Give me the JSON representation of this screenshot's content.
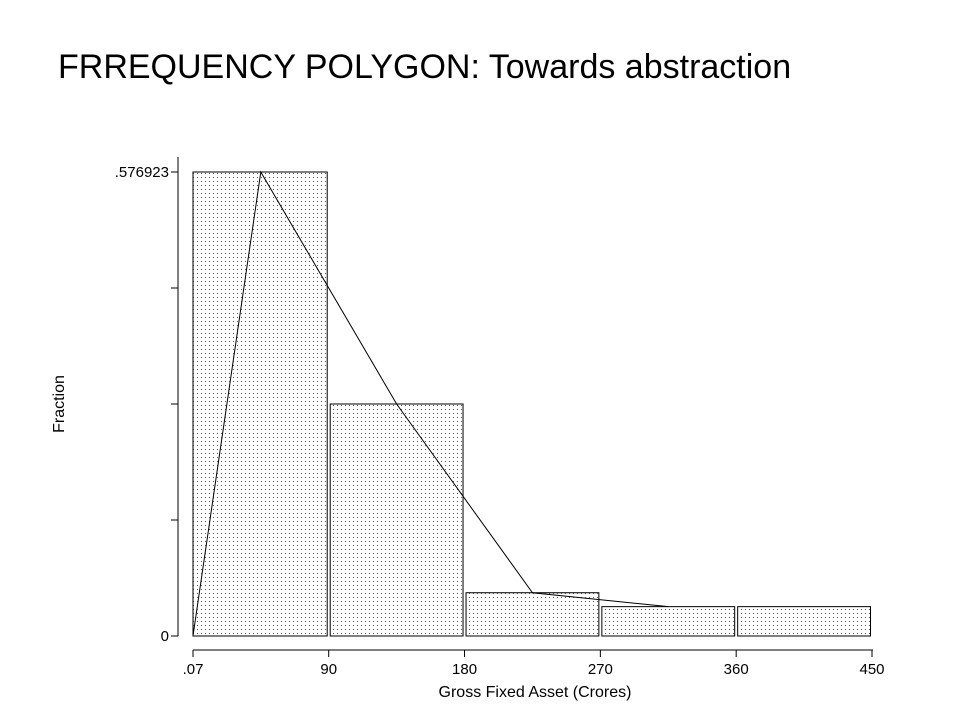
{
  "slide": {
    "title": "FRREQUENCY POLYGON: Towards abstraction"
  },
  "chart_data": {
    "type": "bar",
    "subtype": "histogram-with-frequency-polygon",
    "title": "",
    "xlabel": "Gross Fixed Asset (Crores)",
    "ylabel": "Fraction",
    "x_tick_labels": [
      ".07",
      "90",
      "180",
      "270",
      "360",
      "450"
    ],
    "x_tick_values": [
      0.07,
      90,
      180,
      270,
      360,
      450
    ],
    "y_tick_labels": [
      ".576923",
      "0"
    ],
    "y_tick_values": [
      0.576923,
      0
    ],
    "y_minor_ticks": [
      0.144231,
      0.288462,
      0.432692
    ],
    "xlim": [
      0.07,
      450
    ],
    "ylim": [
      0,
      0.576923
    ],
    "bins": [
      {
        "start": 0.07,
        "end": 90,
        "value": 0.576923
      },
      {
        "start": 90,
        "end": 180,
        "value": 0.288462
      },
      {
        "start": 180,
        "end": 270,
        "value": 0.0538
      },
      {
        "start": 270,
        "end": 360,
        "value": 0.0365
      },
      {
        "start": 360,
        "end": 450,
        "value": 0.0365
      }
    ],
    "polygon": {
      "x": [
        0.07,
        45,
        135,
        225,
        315
      ],
      "y": [
        0,
        0.576923,
        0.288462,
        0.0538,
        0.0365
      ]
    },
    "bar_fill": "dotted",
    "grid": false,
    "legend": "none"
  }
}
